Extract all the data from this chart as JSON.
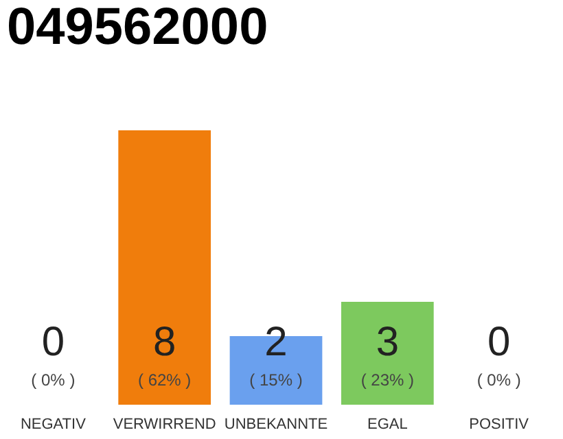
{
  "chart_data": {
    "type": "bar",
    "title": "049562000",
    "categories": [
      "NEGATIV",
      "VERWIRREND",
      "UNBEKANNTE",
      "EGAL",
      "POSITIV"
    ],
    "values": [
      0,
      8,
      2,
      3,
      0
    ],
    "colors": [
      "#e8283c",
      "#f07d0c",
      "#6aa0ee",
      "#7dc95e",
      "#27a844"
    ],
    "data_labels": true,
    "annotations": [
      "( 0% )",
      "( 62% )",
      "( 15% )",
      "( 23% )",
      "( 0% )"
    ],
    "tick_labels": "x"
  }
}
